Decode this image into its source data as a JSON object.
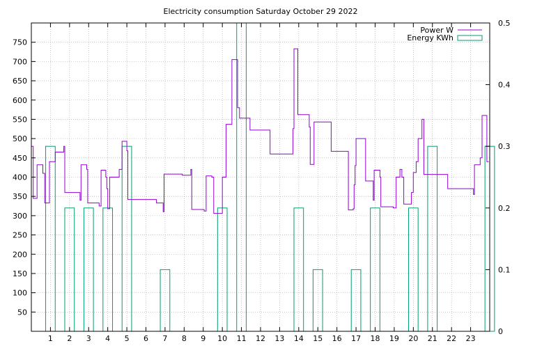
{
  "chart_data": {
    "type": "line",
    "title": "Electricity consumption Saturday October 29 2022",
    "x_ticks": [
      "1",
      "2",
      "3",
      "4",
      "5",
      "6",
      "7",
      "8",
      "9",
      "10",
      "11",
      "12",
      "13",
      "14",
      "15",
      "16",
      "17",
      "18",
      "19",
      "20",
      "21",
      "22",
      "23"
    ],
    "y_ticks": [
      "50",
      "100",
      "150",
      "200",
      "250",
      "300",
      "350",
      "400",
      "450",
      "500",
      "550",
      "600",
      "650",
      "700",
      "750"
    ],
    "y2_ticks": [
      "0",
      "0.1",
      "0.2",
      "0.3",
      "0.4",
      "0.5"
    ],
    "xlim": [
      0,
      24
    ],
    "ylim": [
      0,
      800
    ],
    "y2lim": [
      0,
      0.5
    ],
    "grid": true,
    "legend_position": "top-right",
    "series": [
      {
        "name": "Power W",
        "axis": "left",
        "color": "#9400d3",
        "style": "steps",
        "points": [
          [
            0.0,
            480
          ],
          [
            0.1,
            345
          ],
          [
            0.3,
            432
          ],
          [
            0.6,
            410
          ],
          [
            0.7,
            333
          ],
          [
            0.95,
            440
          ],
          [
            1.25,
            465
          ],
          [
            1.7,
            480
          ],
          [
            1.75,
            360
          ],
          [
            2.55,
            340
          ],
          [
            2.6,
            432
          ],
          [
            2.9,
            420
          ],
          [
            2.95,
            333
          ],
          [
            3.55,
            325
          ],
          [
            3.65,
            418
          ],
          [
            3.9,
            400
          ],
          [
            3.95,
            370
          ],
          [
            4.0,
            318
          ],
          [
            4.1,
            400
          ],
          [
            4.6,
            420
          ],
          [
            4.75,
            493
          ],
          [
            5.0,
            468
          ],
          [
            5.05,
            342
          ],
          [
            6.55,
            333
          ],
          [
            6.9,
            310
          ],
          [
            6.95,
            408
          ],
          [
            7.9,
            405
          ],
          [
            8.35,
            420
          ],
          [
            8.4,
            316
          ],
          [
            9.05,
            312
          ],
          [
            9.15,
            403
          ],
          [
            9.45,
            400
          ],
          [
            9.55,
            306
          ],
          [
            10.0,
            400
          ],
          [
            10.2,
            537
          ],
          [
            10.5,
            705
          ],
          [
            10.8,
            580
          ],
          [
            10.9,
            553
          ],
          [
            11.45,
            522
          ],
          [
            12.5,
            460
          ],
          [
            13.7,
            526
          ],
          [
            13.75,
            733
          ],
          [
            13.95,
            562
          ],
          [
            14.55,
            530
          ],
          [
            14.6,
            433
          ],
          [
            14.8,
            543
          ],
          [
            15.7,
            467
          ],
          [
            16.6,
            315
          ],
          [
            16.85,
            318
          ],
          [
            16.9,
            380
          ],
          [
            16.95,
            430
          ],
          [
            17.0,
            500
          ],
          [
            17.5,
            390
          ],
          [
            17.9,
            340
          ],
          [
            17.95,
            418
          ],
          [
            18.25,
            400
          ],
          [
            18.3,
            323
          ],
          [
            18.95,
            320
          ],
          [
            19.1,
            400
          ],
          [
            19.3,
            420
          ],
          [
            19.4,
            400
          ],
          [
            19.5,
            330
          ],
          [
            19.9,
            360
          ],
          [
            20.0,
            412
          ],
          [
            20.15,
            440
          ],
          [
            20.25,
            500
          ],
          [
            20.45,
            550
          ],
          [
            20.55,
            407
          ],
          [
            21.8,
            370
          ],
          [
            23.15,
            355
          ],
          [
            23.2,
            432
          ],
          [
            23.5,
            450
          ],
          [
            23.6,
            560
          ],
          [
            23.85,
            440
          ]
        ]
      },
      {
        "name": "Energy KWh",
        "axis": "right",
        "color": "#009e73",
        "style": "boxes",
        "hours": [
          0,
          1,
          2,
          3,
          4,
          5,
          6,
          7,
          8,
          9,
          10,
          11,
          12,
          13,
          14,
          15,
          16,
          17,
          18,
          19,
          20,
          21,
          22,
          23
        ],
        "values": [
          0.3,
          0.2,
          0.2,
          0.2,
          0.3,
          0,
          0.1,
          0,
          0,
          0.2,
          0.5,
          0,
          0,
          0.2,
          0.1,
          0,
          0.1,
          0.2,
          0,
          0.2,
          0.3,
          0,
          0,
          0.3
        ]
      }
    ]
  }
}
